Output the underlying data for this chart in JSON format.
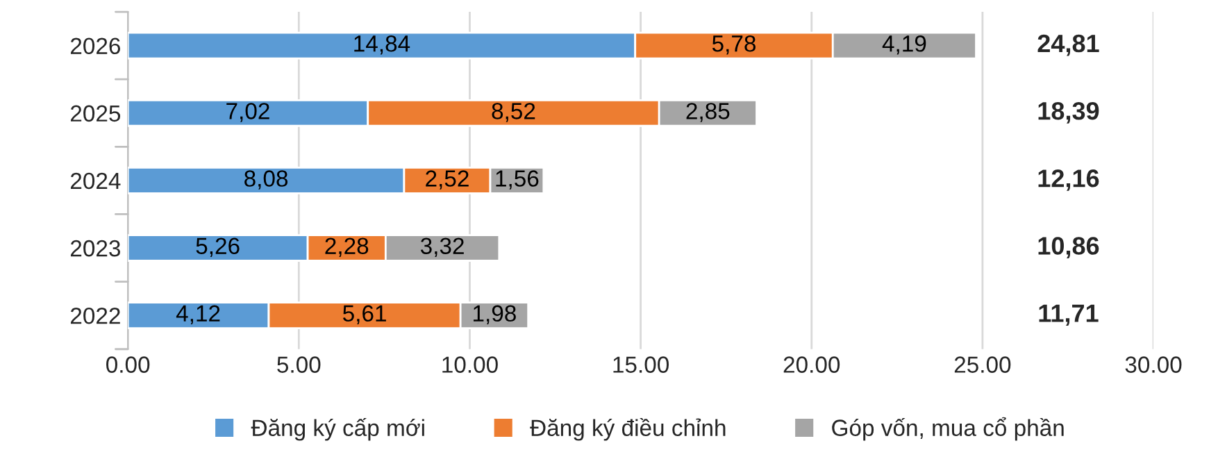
{
  "chart_data": {
    "type": "bar",
    "orientation": "horizontal",
    "stacked": true,
    "categories": [
      "2026",
      "2025",
      "2024",
      "2023",
      "2022"
    ],
    "series": [
      {
        "name": "Đăng ký cấp mới",
        "color": "#5b9bd5",
        "values": [
          14.84,
          7.02,
          8.08,
          5.26,
          4.12
        ],
        "value_labels": [
          "14,84",
          "7,02",
          "8,08",
          "5,26",
          "4,12"
        ]
      },
      {
        "name": "Đăng ký điều chỉnh",
        "color": "#ed7d31",
        "values": [
          5.78,
          8.52,
          2.52,
          2.28,
          5.61
        ],
        "value_labels": [
          "5,78",
          "8,52",
          "2,52",
          "2,28",
          "5,61"
        ]
      },
      {
        "name": "Góp vốn, mua cổ phần",
        "color": "#a5a5a5",
        "values": [
          4.19,
          2.85,
          1.56,
          3.32,
          1.98
        ],
        "value_labels": [
          "4,19",
          "2,85",
          "1,56",
          "3,32",
          "1,98"
        ]
      }
    ],
    "annotations": [
      "24,81",
      "18,39",
      "12,16",
      "10,86",
      "11,71"
    ],
    "xlim": [
      0,
      30
    ],
    "xticks": [
      {
        "value": 0,
        "label": "0.00"
      },
      {
        "value": 5,
        "label": "5.00"
      },
      {
        "value": 10,
        "label": "10.00"
      },
      {
        "value": 15,
        "label": "15.00"
      },
      {
        "value": 20,
        "label": "20.00"
      },
      {
        "value": 25,
        "label": "25.00"
      },
      {
        "value": 30,
        "label": "30.00"
      }
    ],
    "grid": "x",
    "legend": "bottom"
  }
}
